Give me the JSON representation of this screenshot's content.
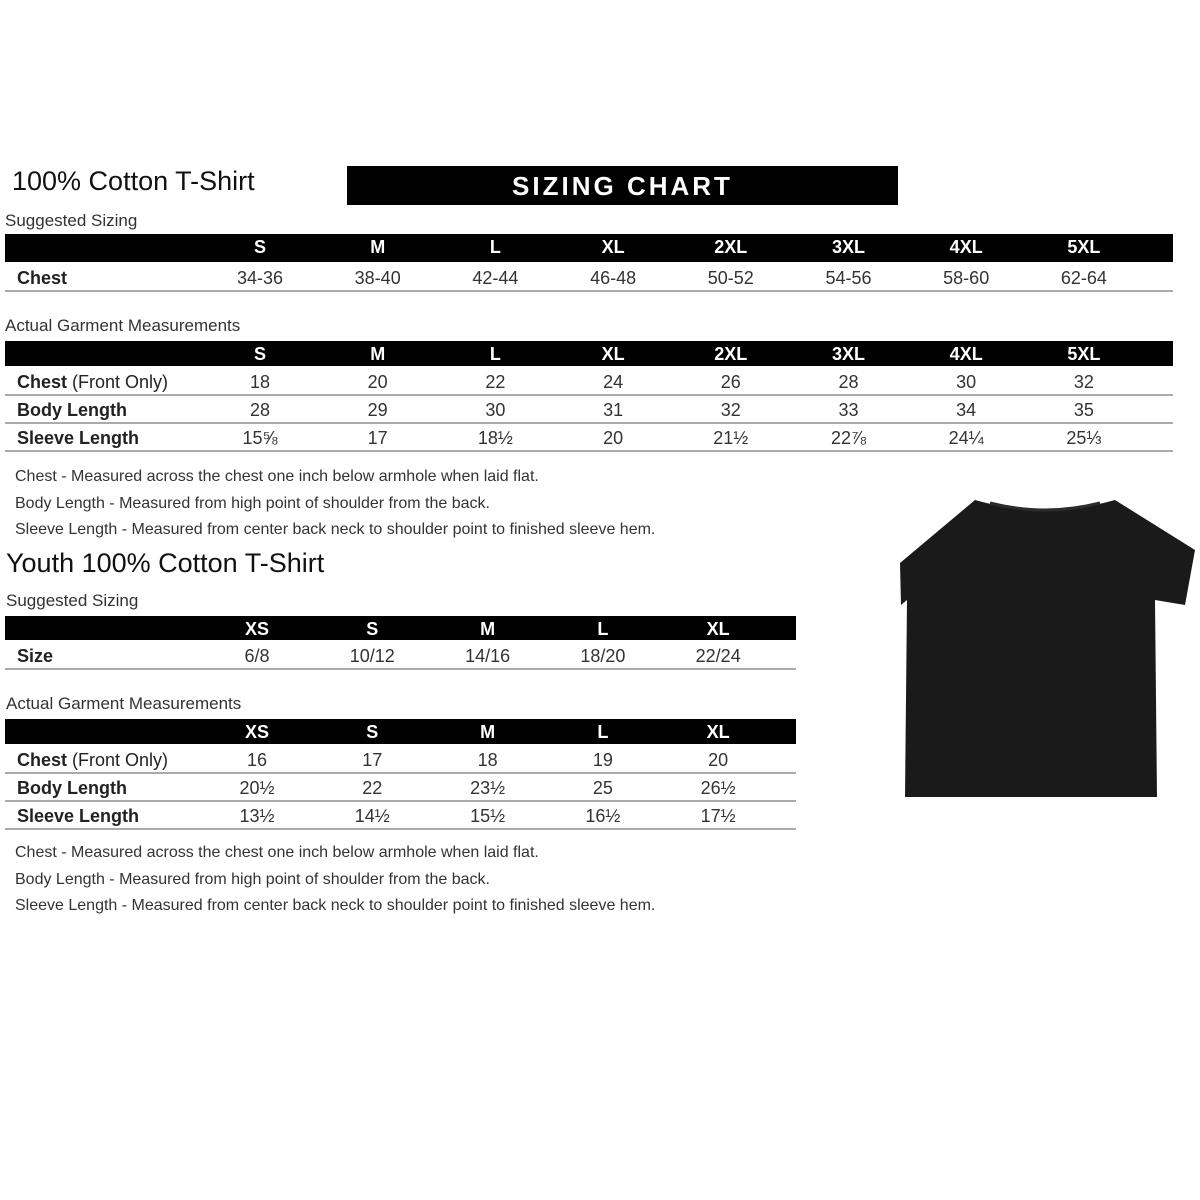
{
  "adult": {
    "title": "100% Cotton T-Shirt",
    "banner": "SIZING CHART",
    "suggested_label": "Suggested Sizing",
    "sizes": [
      "S",
      "M",
      "L",
      "XL",
      "2XL",
      "3XL",
      "4XL",
      "5XL"
    ],
    "suggested_rows": [
      {
        "label": "Chest",
        "label_extra": "",
        "values": [
          "34-36",
          "38-40",
          "42-44",
          "46-48",
          "50-52",
          "54-56",
          "58-60",
          "62-64"
        ]
      }
    ],
    "actual_label": "Actual Garment Measurements",
    "actual_rows": [
      {
        "label": "Chest",
        "label_extra": " (Front Only)",
        "values": [
          "18",
          "20",
          "22",
          "24",
          "26",
          "28",
          "30",
          "32"
        ]
      },
      {
        "label": "Body Length",
        "label_extra": "",
        "values": [
          "28",
          "29",
          "30",
          "31",
          "32",
          "33",
          "34",
          "35"
        ]
      },
      {
        "label": "Sleeve Length",
        "label_extra": "",
        "values": [
          "15⅝",
          "17",
          "18½",
          "20",
          "21½",
          "22⅞",
          "24¼",
          "25⅓"
        ]
      }
    ],
    "notes": [
      "Chest - Measured across the chest one inch below armhole when laid flat.",
      "Body Length - Measured from high point of shoulder from the back.",
      "Sleeve Length - Measured from center back neck to shoulder point to finished sleeve hem."
    ]
  },
  "youth": {
    "title": "Youth 100% Cotton T-Shirt",
    "suggested_label": "Suggested Sizing",
    "sizes": [
      "XS",
      "S",
      "M",
      "L",
      "XL"
    ],
    "suggested_rows": [
      {
        "label": "Size",
        "label_extra": "",
        "values": [
          "6/8",
          "10/12",
          "14/16",
          "18/20",
          "22/24"
        ]
      }
    ],
    "actual_label": "Actual Garment Measurements",
    "actual_rows": [
      {
        "label": "Chest",
        "label_extra": " (Front Only)",
        "values": [
          "16",
          "17",
          "18",
          "19",
          "20"
        ]
      },
      {
        "label": "Body Length",
        "label_extra": "",
        "values": [
          "20½",
          "22",
          "23½",
          "25",
          "26½"
        ]
      },
      {
        "label": "Sleeve Length",
        "label_extra": "",
        "values": [
          "13½",
          "14½",
          "15½",
          "16½",
          "17½"
        ]
      }
    ],
    "notes": [
      "Chest - Measured across the chest one inch below armhole when laid flat.",
      "Body Length - Measured from high point of shoulder from the back.",
      "Sleeve Length - Measured from center back neck to shoulder point to finished sleeve hem."
    ]
  },
  "image": {
    "icon": "black-tshirt-icon",
    "color": "#1a1a1a"
  }
}
